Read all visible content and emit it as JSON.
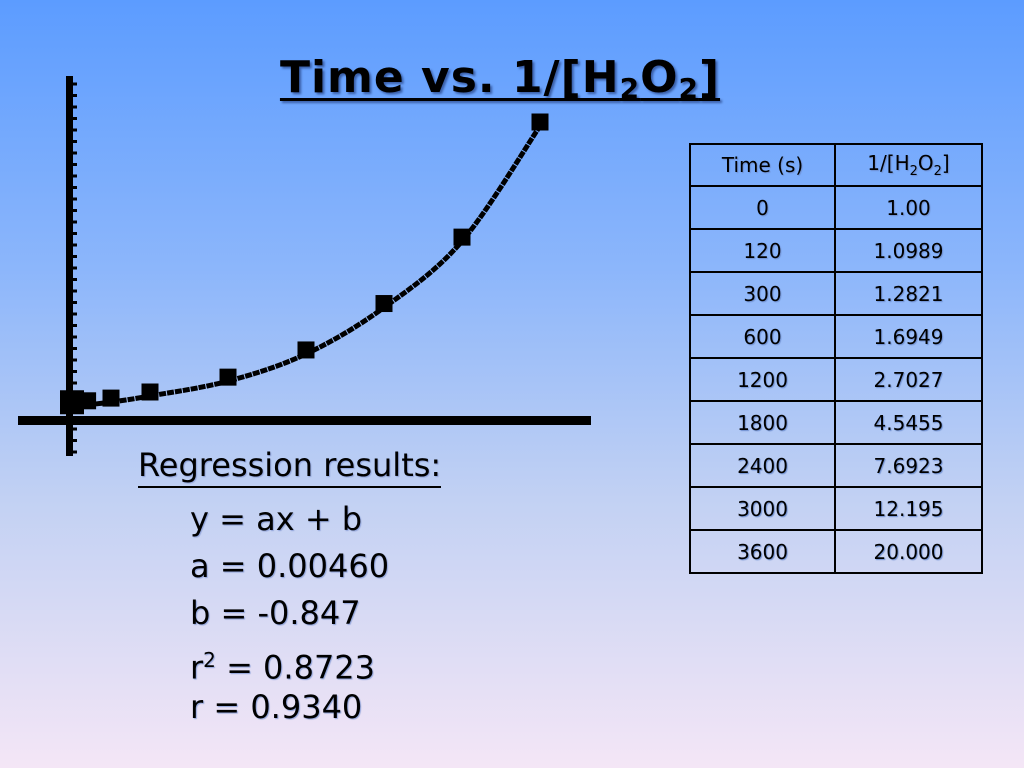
{
  "title": {
    "prefix": "Time vs. 1/[H",
    "sub1": "2",
    "mid": "O",
    "sub2": "2",
    "suffix": "]"
  },
  "chart_data": {
    "type": "scatter",
    "title": "Time vs. 1/[H2O2]",
    "x_label": "",
    "y_label": "",
    "x_range": [
      0,
      3600
    ],
    "y_range": [
      0,
      20
    ],
    "grid": false,
    "legend": "none",
    "points": [
      {
        "x": 0,
        "y": 1.0
      },
      {
        "x": 120,
        "y": 1.0989
      },
      {
        "x": 300,
        "y": 1.2821
      },
      {
        "x": 600,
        "y": 1.6949
      },
      {
        "x": 1200,
        "y": 2.7027
      },
      {
        "x": 1800,
        "y": 4.5455
      },
      {
        "x": 2400,
        "y": 7.6923
      },
      {
        "x": 3000,
        "y": 12.195
      },
      {
        "x": 3600,
        "y": 20.0
      }
    ],
    "connected": true,
    "color": "#000000"
  },
  "table": {
    "header_time": "Time (s)",
    "header_inv": {
      "prefix": "1/[H",
      "sub1": "2",
      "mid": "O",
      "sub2": "2",
      "suffix": "]"
    },
    "rows": [
      {
        "time": "0",
        "inv": "1.00"
      },
      {
        "time": "120",
        "inv": "1.0989"
      },
      {
        "time": "300",
        "inv": "1.2821"
      },
      {
        "time": "600",
        "inv": "1.6949"
      },
      {
        "time": "1200",
        "inv": "2.7027"
      },
      {
        "time": "1800",
        "inv": "4.5455"
      },
      {
        "time": "2400",
        "inv": "7.6923"
      },
      {
        "time": "3000",
        "inv": "12.195"
      },
      {
        "time": "3600",
        "inv": "20.000"
      }
    ]
  },
  "regression": {
    "heading": "Regression results:",
    "equation": "y = ax + b",
    "a": "a = 0.00460",
    "b": "b = -0.847",
    "r2_prefix": "r",
    "r2_sup": "2",
    "r2_value": " = 0.8723",
    "r": "r = 0.9340"
  }
}
